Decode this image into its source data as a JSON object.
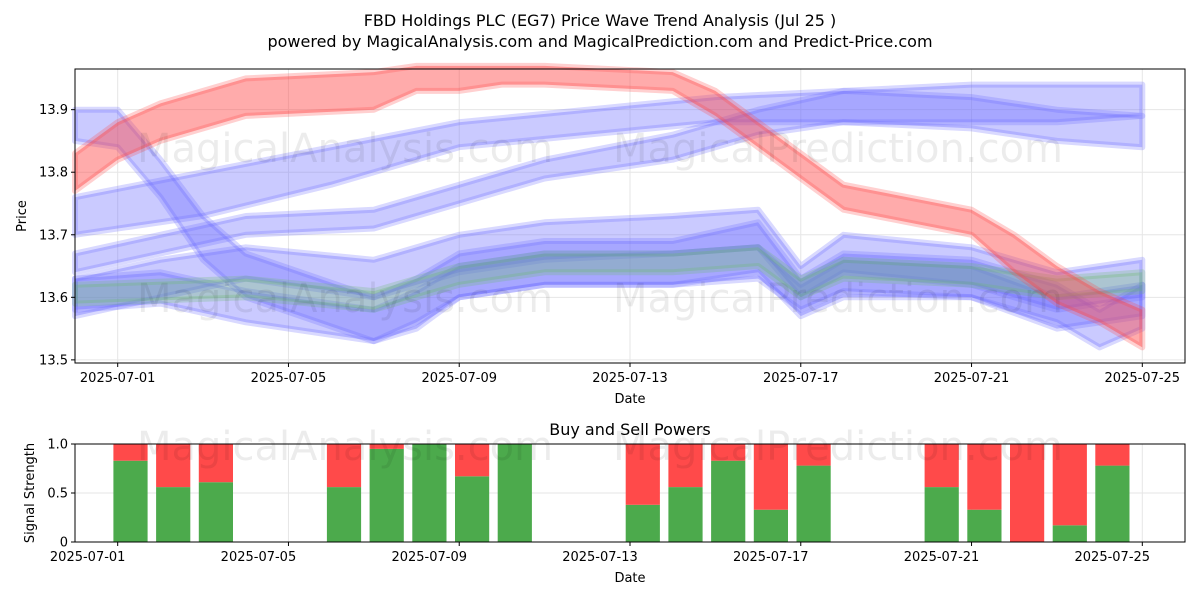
{
  "chart_data": [
    {
      "type": "area",
      "title": "FBD Holdings PLC (EG7) Price Wave Trend Analysis (Jul 25 )",
      "subtitle": "powered by MagicalAnalysis.com and MagicalPrediction.com and Predict-Price.com",
      "xlabel": "Date",
      "ylabel": "Price",
      "xlim": [
        "2025-06-30",
        "2025-07-26"
      ],
      "ylim": [
        13.495,
        13.965
      ],
      "grid": true,
      "x_ticks": [
        "2025-07-01",
        "2025-07-05",
        "2025-07-09",
        "2025-07-13",
        "2025-07-17",
        "2025-07-21",
        "2025-07-25"
      ],
      "y_ticks": [
        13.5,
        13.6,
        13.7,
        13.8,
        13.9
      ],
      "x_tick_labels": [
        "2025-07-01",
        "2025-07-05",
        "2025-07-09",
        "2025-07-13",
        "2025-07-17",
        "2025-07-21",
        "2025-07-25"
      ],
      "y_tick_labels": [
        "13.5",
        "13.6",
        "13.7",
        "13.8",
        "13.9"
      ],
      "series": [
        {
          "name": "red-wave",
          "color": "#ff4444",
          "x": [
            "2025-06-30",
            "2025-07-01",
            "2025-07-02",
            "2025-07-03",
            "2025-07-04",
            "2025-07-07",
            "2025-07-08",
            "2025-07-09",
            "2025-07-10",
            "2025-07-11",
            "2025-07-14",
            "2025-07-15",
            "2025-07-16",
            "2025-07-17",
            "2025-07-18",
            "2025-07-21",
            "2025-07-22",
            "2025-07-23",
            "2025-07-24",
            "2025-07-25"
          ],
          "lower": [
            13.77,
            13.82,
            13.85,
            13.87,
            13.89,
            13.9,
            13.93,
            13.93,
            13.94,
            13.94,
            13.93,
            13.89,
            13.84,
            13.79,
            13.74,
            13.7,
            13.64,
            13.59,
            13.56,
            13.52
          ],
          "upper": [
            13.83,
            13.88,
            13.91,
            13.93,
            13.95,
            13.96,
            13.97,
            13.97,
            13.97,
            13.97,
            13.96,
            13.93,
            13.88,
            13.83,
            13.78,
            13.74,
            13.7,
            13.65,
            13.61,
            13.58
          ]
        },
        {
          "name": "blue-wave-1",
          "color": "#6666ff",
          "x": [
            "2025-06-30",
            "2025-07-02",
            "2025-07-04",
            "2025-07-07",
            "2025-07-09",
            "2025-07-11",
            "2025-07-14",
            "2025-07-16",
            "2025-07-18",
            "2025-07-21",
            "2025-07-23",
            "2025-07-25"
          ],
          "lower": [
            13.64,
            13.67,
            13.7,
            13.71,
            13.75,
            13.79,
            13.82,
            13.86,
            13.88,
            13.88,
            13.88,
            13.89
          ],
          "upper": [
            13.67,
            13.7,
            13.73,
            13.74,
            13.78,
            13.82,
            13.86,
            13.9,
            13.93,
            13.94,
            13.94,
            13.94
          ]
        },
        {
          "name": "blue-wave-2",
          "color": "#6666ff",
          "x": [
            "2025-06-30",
            "2025-07-03",
            "2025-07-06",
            "2025-07-09",
            "2025-07-12",
            "2025-07-15",
            "2025-07-18",
            "2025-07-21",
            "2025-07-23",
            "2025-07-25"
          ],
          "lower": [
            13.7,
            13.73,
            13.78,
            13.84,
            13.86,
            13.88,
            13.88,
            13.87,
            13.85,
            13.84
          ],
          "upper": [
            13.76,
            13.8,
            13.84,
            13.88,
            13.9,
            13.92,
            13.93,
            13.92,
            13.9,
            13.89
          ]
        },
        {
          "name": "blue-wave-3",
          "color": "#6666ff",
          "x": [
            "2025-06-30",
            "2025-07-02",
            "2025-07-04",
            "2025-07-07",
            "2025-07-09",
            "2025-07-11",
            "2025-07-14",
            "2025-07-16",
            "2025-07-17",
            "2025-07-18",
            "2025-07-21",
            "2025-07-23",
            "2025-07-25"
          ],
          "lower": [
            13.57,
            13.6,
            13.63,
            13.6,
            13.64,
            13.66,
            13.67,
            13.68,
            13.6,
            13.64,
            13.62,
            13.58,
            13.6
          ],
          "upper": [
            13.63,
            13.66,
            13.68,
            13.66,
            13.7,
            13.72,
            13.73,
            13.74,
            13.65,
            13.7,
            13.68,
            13.64,
            13.66
          ]
        },
        {
          "name": "blue-wave-4",
          "color": "#6666ff",
          "x": [
            "2025-06-30",
            "2025-07-01",
            "2025-07-02",
            "2025-07-03",
            "2025-07-04",
            "2025-07-07",
            "2025-07-08",
            "2025-07-09",
            "2025-07-11",
            "2025-07-14",
            "2025-07-16",
            "2025-07-17",
            "2025-07-18",
            "2025-07-21",
            "2025-07-23",
            "2025-07-24",
            "2025-07-25"
          ],
          "lower": [
            13.85,
            13.84,
            13.76,
            13.66,
            13.6,
            13.53,
            13.55,
            13.6,
            13.62,
            13.62,
            13.64,
            13.57,
            13.6,
            13.6,
            13.56,
            13.52,
            13.55
          ],
          "upper": [
            13.9,
            13.9,
            13.82,
            13.73,
            13.67,
            13.6,
            13.63,
            13.67,
            13.69,
            13.69,
            13.72,
            13.63,
            13.67,
            13.66,
            13.62,
            13.58,
            13.62
          ]
        },
        {
          "name": "blue-wave-5",
          "color": "#6666ff",
          "x": [
            "2025-06-30",
            "2025-07-02",
            "2025-07-04",
            "2025-07-07",
            "2025-07-08",
            "2025-07-09",
            "2025-07-11",
            "2025-07-14",
            "2025-07-16",
            "2025-07-17",
            "2025-07-18",
            "2025-07-21",
            "2025-07-23",
            "2025-07-25"
          ],
          "lower": [
            13.58,
            13.59,
            13.56,
            13.53,
            13.56,
            13.6,
            13.62,
            13.62,
            13.63,
            13.58,
            13.61,
            13.6,
            13.55,
            13.57
          ],
          "upper": [
            13.63,
            13.64,
            13.61,
            13.58,
            13.61,
            13.65,
            13.67,
            13.67,
            13.68,
            13.62,
            13.66,
            13.65,
            13.6,
            13.62
          ]
        },
        {
          "name": "green-wave",
          "color": "#66bb66",
          "x": [
            "2025-06-30",
            "2025-07-04",
            "2025-07-07",
            "2025-07-09",
            "2025-07-11",
            "2025-07-14",
            "2025-07-16",
            "2025-07-17",
            "2025-07-18",
            "2025-07-21",
            "2025-07-23",
            "2025-07-25"
          ],
          "lower": [
            13.59,
            13.6,
            13.58,
            13.62,
            13.64,
            13.64,
            13.65,
            13.6,
            13.63,
            13.62,
            13.6,
            13.61
          ],
          "upper": [
            13.62,
            13.63,
            13.61,
            13.65,
            13.67,
            13.67,
            13.68,
            13.63,
            13.66,
            13.65,
            13.63,
            13.64
          ]
        }
      ]
    },
    {
      "type": "bar",
      "title": "Buy and Sell Powers",
      "xlabel": "Date",
      "ylabel": "Signal Strength",
      "xlim": [
        "2025-06-30",
        "2025-07-26"
      ],
      "ylim": [
        0,
        1
      ],
      "grid": true,
      "x_ticks": [
        "2025-07-01",
        "2025-07-05",
        "2025-07-09",
        "2025-07-13",
        "2025-07-17",
        "2025-07-21",
        "2025-07-25"
      ],
      "y_ticks": [
        0,
        0.5,
        1.0
      ],
      "x_tick_labels": [
        "2025-07-01",
        "2025-07-05",
        "2025-07-09",
        "2025-07-13",
        "2025-07-17",
        "2025-07-21",
        "2025-07-25"
      ],
      "y_tick_labels": [
        "0",
        "0.5",
        "1.0"
      ],
      "buy_color": "#4caa4c",
      "sell_color": "#ff4a4a",
      "categories": [
        "2025-07-02",
        "2025-07-03",
        "2025-07-04",
        "2025-07-07",
        "2025-07-08",
        "2025-07-09",
        "2025-07-10",
        "2025-07-11",
        "2025-07-14",
        "2025-07-15",
        "2025-07-16",
        "2025-07-17",
        "2025-07-18",
        "2025-07-21",
        "2025-07-22",
        "2025-07-23",
        "2025-07-24",
        "2025-07-25"
      ],
      "series": [
        {
          "name": "Buy",
          "values": [
            0.83,
            0.56,
            0.61,
            0.56,
            0.95,
            1.0,
            0.67,
            1.0,
            0.38,
            0.56,
            0.83,
            0.33,
            0.78,
            0.56,
            0.33,
            0.0,
            0.17,
            0.78
          ]
        },
        {
          "name": "Sell",
          "values": [
            0.17,
            0.44,
            0.39,
            0.44,
            0.05,
            0.0,
            0.33,
            0.0,
            0.62,
            0.44,
            0.17,
            0.67,
            0.22,
            0.44,
            0.67,
            1.0,
            0.83,
            0.22
          ]
        }
      ]
    }
  ],
  "watermarks": [
    "MagicalAnalysis.com",
    "MagicalPrediction.com"
  ]
}
